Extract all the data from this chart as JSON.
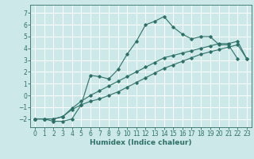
{
  "title": "",
  "xlabel": "Humidex (Indice chaleur)",
  "bg_color": "#cce8e8",
  "grid_color": "#ffffff",
  "line_color": "#2d7068",
  "xlim": [
    -0.5,
    23.5
  ],
  "ylim": [
    -2.7,
    7.7
  ],
  "xticks": [
    0,
    1,
    2,
    3,
    4,
    5,
    6,
    7,
    8,
    9,
    10,
    11,
    12,
    13,
    14,
    15,
    16,
    17,
    18,
    19,
    20,
    21,
    22,
    23
  ],
  "yticks": [
    -2,
    -1,
    0,
    1,
    2,
    3,
    4,
    5,
    6,
    7
  ],
  "line1_x": [
    0,
    1,
    2,
    3,
    4,
    5,
    6,
    7,
    8,
    9,
    10,
    11,
    12,
    13,
    14,
    15,
    16,
    17,
    18,
    19,
    20,
    21,
    22
  ],
  "line1_y": [
    -2,
    -2,
    -2.2,
    -2.2,
    -2,
    -0.8,
    1.7,
    1.6,
    1.4,
    2.2,
    3.5,
    4.6,
    6.0,
    6.3,
    6.7,
    5.8,
    5.2,
    4.8,
    5.0,
    5.0,
    4.3,
    4.3,
    3.1
  ],
  "line2_x": [
    0,
    1,
    2,
    3,
    4,
    5,
    6,
    7,
    8,
    9,
    10,
    11,
    12,
    13,
    14,
    15,
    16,
    17,
    18,
    19,
    20,
    21,
    22,
    23
  ],
  "line2_y": [
    -2,
    -2,
    -2,
    -1.8,
    -1.1,
    -0.5,
    0.0,
    0.4,
    0.8,
    1.2,
    1.6,
    2.0,
    2.4,
    2.8,
    3.2,
    3.4,
    3.6,
    3.8,
    4.0,
    4.2,
    4.4,
    4.4,
    4.6,
    3.1
  ],
  "line3_x": [
    0,
    1,
    2,
    3,
    4,
    5,
    6,
    7,
    8,
    9,
    10,
    11,
    12,
    13,
    14,
    15,
    16,
    17,
    18,
    19,
    20,
    21,
    22,
    23
  ],
  "line3_y": [
    -2,
    -2,
    -2,
    -1.8,
    -1.2,
    -0.8,
    -0.5,
    -0.3,
    0.0,
    0.3,
    0.7,
    1.1,
    1.5,
    1.9,
    2.3,
    2.6,
    2.9,
    3.2,
    3.5,
    3.7,
    3.9,
    4.1,
    4.3,
    3.1
  ],
  "tick_fontsize": 5.5,
  "xlabel_fontsize": 6.5,
  "marker_size": 1.8,
  "linewidth": 0.8
}
